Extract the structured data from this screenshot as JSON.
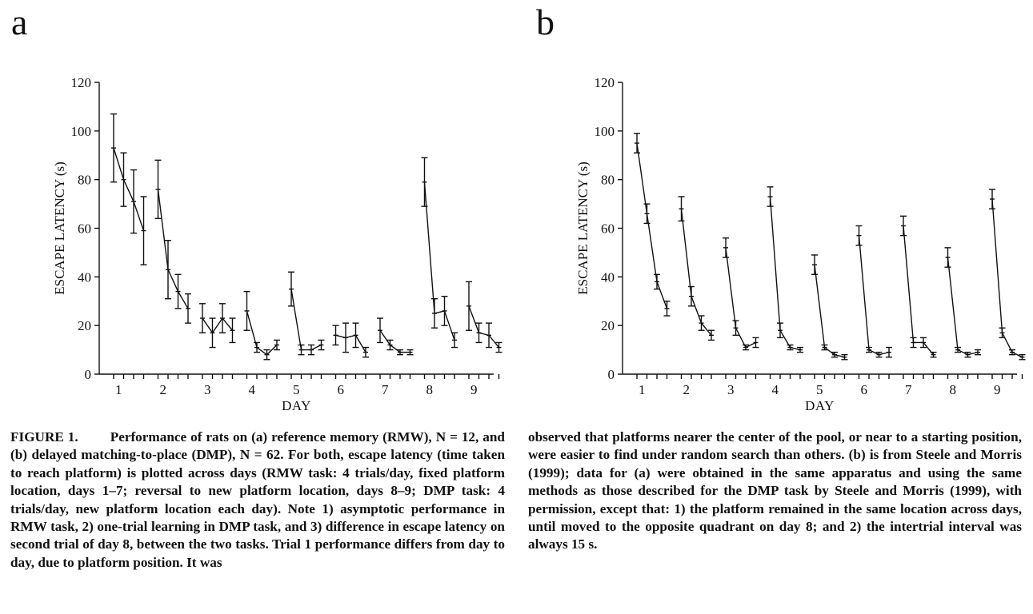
{
  "panel_a_label": "a",
  "panel_b_label": "b",
  "caption": {
    "label": "FIGURE 1.",
    "left_text": "Performance of rats on (a) reference memory (RMW), N = 12, and (b) delayed matching-to-place (DMP), N = 62. For both, escape latency (time taken to reach platform) is plotted across days (RMW task: 4 trials/day, fixed platform location, days 1–7; reversal to new platform location, days 8–9; DMP task: 4 trials/day, new platform location each day). Note 1) asymptotic performance in RMW task, 2) one-trial learning in DMP task, and 3) difference in escape latency on second trial of day 8, between the two tasks. Trial 1 performance differs from day to day, due to platform position. It was",
    "right_text": "observed that platforms nearer the center of the pool, or near to a starting position, were easier to find under random search than others. (b) is from Steele and Morris (1999); data for (a) were obtained in the same apparatus and using the same methods as those described for the DMP task by Steele and Morris (1999), with permission, except that: 1) the platform remained in the same location across days, until moved to the opposite quadrant on day 8; and 2) the intertrial interval was always 15 s."
  },
  "chart_data": [
    {
      "panel": "a",
      "type": "line",
      "xlabel": "DAY",
      "ylabel": "ESCAPE LATENCY (s)",
      "ylim": [
        0,
        120
      ],
      "yticks": [
        "0",
        "20",
        "40",
        "60",
        "80",
        "100",
        "120"
      ],
      "day_labels": [
        "1",
        "2",
        "3",
        "4",
        "5",
        "6",
        "7",
        "8",
        "9"
      ],
      "grid": false,
      "trials_per_day": 4,
      "series": [
        {
          "days": [
            {
              "day": 1,
              "means": [
                93,
                80,
                71,
                59
              ],
              "errors": [
                14,
                11,
                13,
                14
              ]
            },
            {
              "day": 2,
              "means": [
                76,
                43,
                34,
                27
              ],
              "errors": [
                12,
                12,
                7,
                6
              ]
            },
            {
              "day": 3,
              "means": [
                23,
                17,
                23,
                18
              ],
              "errors": [
                6,
                6,
                6,
                5
              ]
            },
            {
              "day": 4,
              "means": [
                26,
                11,
                8,
                12
              ],
              "errors": [
                8,
                2,
                2,
                2
              ]
            },
            {
              "day": 5,
              "means": [
                35,
                10,
                10,
                12
              ],
              "errors": [
                7,
                2,
                2,
                2
              ]
            },
            {
              "day": 6,
              "means": [
                16,
                15,
                16,
                9
              ],
              "errors": [
                4,
                6,
                5,
                2
              ]
            },
            {
              "day": 7,
              "means": [
                18,
                12,
                9,
                9
              ],
              "errors": [
                5,
                2,
                1,
                1
              ]
            },
            {
              "day": 8,
              "means": [
                79,
                25,
                26,
                14
              ],
              "errors": [
                10,
                6,
                6,
                3
              ]
            },
            {
              "day": 9,
              "means": [
                28,
                17,
                16,
                11
              ],
              "errors": [
                10,
                4,
                5,
                2
              ]
            }
          ]
        }
      ]
    },
    {
      "panel": "b",
      "type": "line",
      "xlabel": "DAY",
      "ylabel": "ESCAPE LATENCY (s)",
      "ylim": [
        0,
        120
      ],
      "yticks": [
        "0",
        "20",
        "40",
        "60",
        "80",
        "100",
        "120"
      ],
      "day_labels": [
        "1",
        "2",
        "3",
        "4",
        "5",
        "6",
        "7",
        "8",
        "9"
      ],
      "grid": false,
      "trials_per_day": 4,
      "series": [
        {
          "days": [
            {
              "day": 1,
              "means": [
                95,
                66,
                38,
                27
              ],
              "errors": [
                4,
                4,
                3,
                3
              ]
            },
            {
              "day": 2,
              "means": [
                68,
                32,
                21,
                16
              ],
              "errors": [
                5,
                4,
                3,
                2
              ]
            },
            {
              "day": 3,
              "means": [
                52,
                19,
                11,
                13
              ],
              "errors": [
                4,
                3,
                1,
                2
              ]
            },
            {
              "day": 4,
              "means": [
                73,
                18,
                11,
                10
              ],
              "errors": [
                4,
                3,
                1,
                1
              ]
            },
            {
              "day": 5,
              "means": [
                45,
                11,
                8,
                7
              ],
              "errors": [
                4,
                1,
                1,
                1
              ]
            },
            {
              "day": 6,
              "means": [
                57,
                10,
                8,
                9
              ],
              "errors": [
                4,
                1,
                1,
                2
              ]
            },
            {
              "day": 7,
              "means": [
                61,
                13,
                13,
                8
              ],
              "errors": [
                4,
                2,
                2,
                1
              ]
            },
            {
              "day": 8,
              "means": [
                48,
                10,
                8,
                9
              ],
              "errors": [
                4,
                1,
                1,
                1
              ]
            },
            {
              "day": 9,
              "means": [
                72,
                17,
                9,
                7
              ],
              "errors": [
                4,
                2,
                1,
                1
              ]
            }
          ]
        }
      ]
    }
  ]
}
